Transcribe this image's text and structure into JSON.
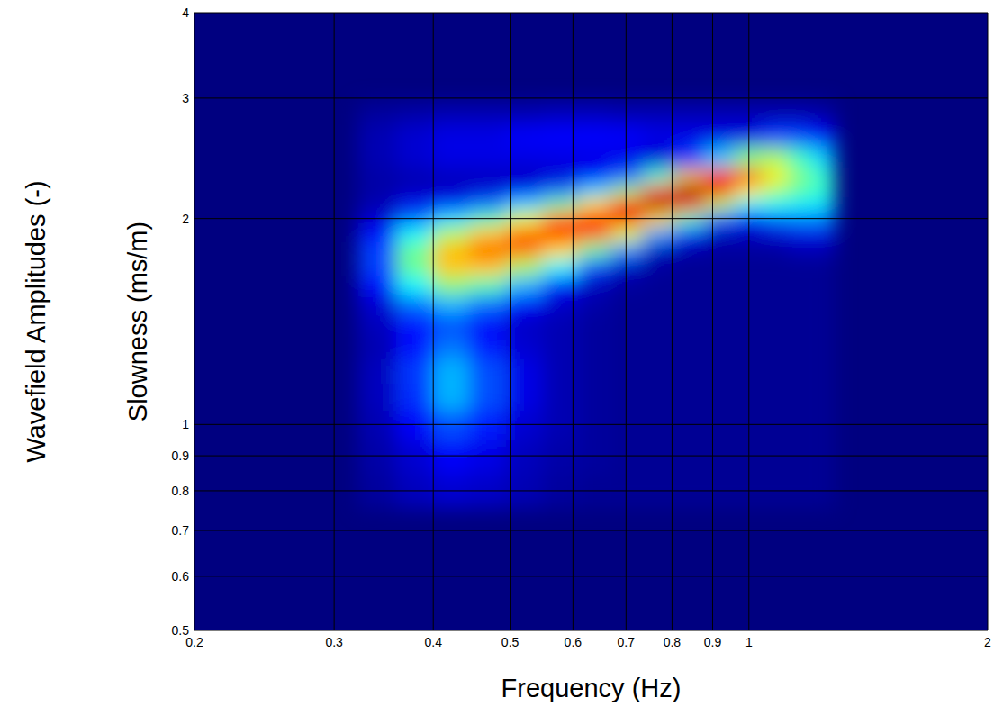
{
  "chart_data": {
    "type": "heatmap",
    "xlabel": "Frequency (Hz)",
    "ylabel": "Slowness (ms/m)",
    "colorbar_label": "Wavefield Amplitudes (-)",
    "log": true,
    "grid": true,
    "xlim": [
      0.2,
      2
    ],
    "ylim": [
      0.5,
      4
    ],
    "xticks": [
      0.2,
      0.3,
      0.4,
      0.5,
      0.6,
      0.7,
      0.8,
      0.9,
      1,
      2
    ],
    "yticks": [
      0.5,
      0.6,
      0.7,
      0.8,
      0.9,
      1,
      2,
      3,
      4
    ],
    "zlim": [
      0,
      1
    ],
    "x": [
      0.34,
      0.38,
      0.42,
      0.47,
      0.52,
      0.58,
      0.64,
      0.7,
      0.77,
      0.84,
      0.92,
      1.0,
      1.08,
      1.16,
      1.24
    ],
    "y": [
      0.8,
      0.9,
      1.0,
      1.1,
      1.2,
      1.3,
      1.4,
      1.5,
      1.6,
      1.7,
      1.8,
      1.9,
      2.0,
      2.1,
      2.2,
      2.3,
      2.45,
      2.65,
      2.85
    ],
    "z": [
      [
        0.03,
        0.06,
        0.08,
        0.07,
        0.05,
        0.03,
        0.02,
        0.02,
        0.02,
        0.02,
        0.02,
        0.02,
        0.02,
        0.02,
        0.02
      ],
      [
        0.04,
        0.08,
        0.12,
        0.1,
        0.06,
        0.04,
        0.03,
        0.02,
        0.02,
        0.02,
        0.02,
        0.02,
        0.02,
        0.02,
        0.02
      ],
      [
        0.05,
        0.12,
        0.2,
        0.15,
        0.08,
        0.05,
        0.03,
        0.02,
        0.02,
        0.02,
        0.02,
        0.02,
        0.02,
        0.02,
        0.02
      ],
      [
        0.06,
        0.17,
        0.3,
        0.2,
        0.1,
        0.05,
        0.03,
        0.02,
        0.02,
        0.02,
        0.02,
        0.02,
        0.02,
        0.02,
        0.02
      ],
      [
        0.06,
        0.18,
        0.3,
        0.2,
        0.1,
        0.05,
        0.03,
        0.02,
        0.02,
        0.02,
        0.02,
        0.02,
        0.02,
        0.02,
        0.02
      ],
      [
        0.05,
        0.14,
        0.24,
        0.15,
        0.08,
        0.05,
        0.03,
        0.02,
        0.02,
        0.02,
        0.02,
        0.02,
        0.02,
        0.02,
        0.02
      ],
      [
        0.06,
        0.14,
        0.2,
        0.12,
        0.07,
        0.05,
        0.03,
        0.02,
        0.02,
        0.02,
        0.02,
        0.02,
        0.02,
        0.02,
        0.02
      ],
      [
        0.08,
        0.23,
        0.3,
        0.23,
        0.12,
        0.07,
        0.04,
        0.02,
        0.02,
        0.02,
        0.02,
        0.02,
        0.02,
        0.02,
        0.02
      ],
      [
        0.14,
        0.37,
        0.51,
        0.45,
        0.3,
        0.14,
        0.06,
        0.03,
        0.02,
        0.02,
        0.02,
        0.02,
        0.02,
        0.02,
        0.02
      ],
      [
        0.19,
        0.48,
        0.68,
        0.68,
        0.54,
        0.37,
        0.19,
        0.07,
        0.03,
        0.02,
        0.02,
        0.02,
        0.02,
        0.02,
        0.02
      ],
      [
        0.19,
        0.48,
        0.69,
        0.78,
        0.76,
        0.66,
        0.47,
        0.26,
        0.07,
        0.04,
        0.03,
        0.03,
        0.03,
        0.05,
        0.05
      ],
      [
        0.14,
        0.37,
        0.55,
        0.68,
        0.79,
        0.85,
        0.78,
        0.6,
        0.28,
        0.16,
        0.06,
        0.06,
        0.08,
        0.1,
        0.1
      ],
      [
        0.08,
        0.23,
        0.34,
        0.45,
        0.6,
        0.76,
        0.87,
        0.89,
        0.66,
        0.44,
        0.22,
        0.15,
        0.22,
        0.25,
        0.25
      ],
      [
        0.05,
        0.11,
        0.16,
        0.23,
        0.33,
        0.48,
        0.66,
        0.85,
        0.96,
        0.85,
        0.56,
        0.36,
        0.38,
        0.36,
        0.35
      ],
      [
        0.04,
        0.06,
        0.07,
        0.09,
        0.13,
        0.22,
        0.34,
        0.52,
        0.82,
        0.99,
        0.89,
        0.64,
        0.53,
        0.46,
        0.42
      ],
      [
        0.04,
        0.05,
        0.06,
        0.06,
        0.06,
        0.08,
        0.13,
        0.22,
        0.42,
        0.69,
        0.85,
        0.8,
        0.64,
        0.5,
        0.42
      ],
      [
        0.05,
        0.08,
        0.1,
        0.1,
        0.1,
        0.1,
        0.1,
        0.1,
        0.08,
        0.18,
        0.32,
        0.5,
        0.54,
        0.43,
        0.33
      ],
      [
        0.05,
        0.08,
        0.1,
        0.1,
        0.12,
        0.13,
        0.13,
        0.12,
        0.1,
        0.1,
        0.1,
        0.1,
        0.18,
        0.18,
        0.12
      ],
      [
        0.03,
        0.04,
        0.05,
        0.05,
        0.05,
        0.06,
        0.06,
        0.05,
        0.05,
        0.05,
        0.05,
        0.05,
        0.05,
        0.05,
        0.04
      ]
    ]
  }
}
